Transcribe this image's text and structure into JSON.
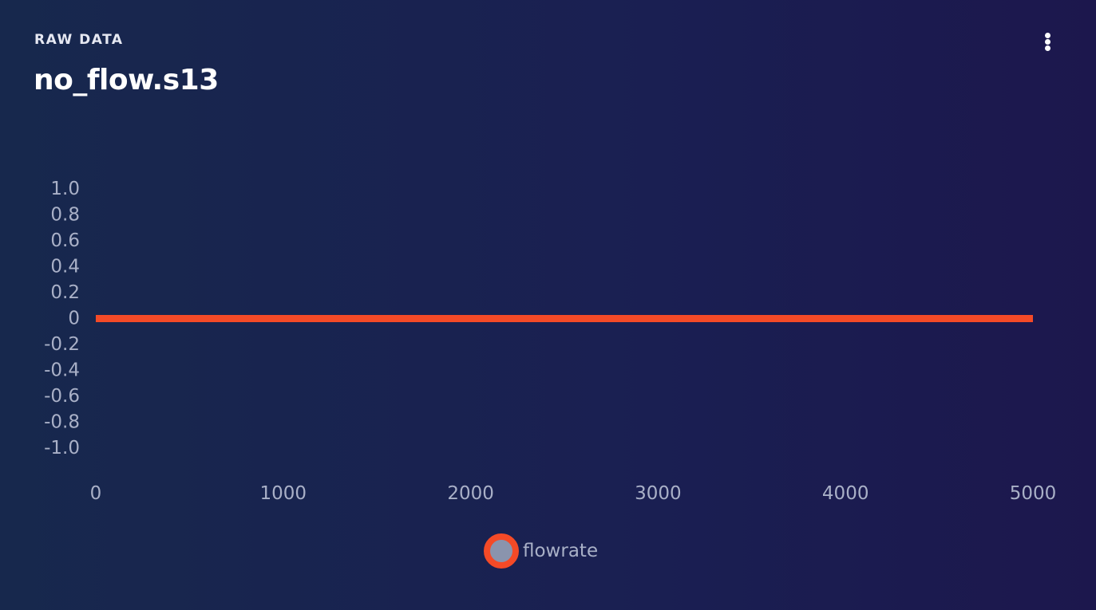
{
  "header": {
    "kicker": "RAW DATA",
    "title": "no_flow.s13"
  },
  "menu": {
    "icon": "more-vertical-icon"
  },
  "chart_data": {
    "type": "line",
    "title": "",
    "xlabel": "",
    "ylabel": "",
    "xlim": [
      0,
      5000
    ],
    "ylim": [
      -1.0,
      1.0
    ],
    "x_ticks": [
      "0",
      "1000",
      "2000",
      "3000",
      "4000",
      "5000"
    ],
    "y_ticks": [
      "1.0",
      "0.8",
      "0.6",
      "0.4",
      "0.2",
      "0",
      "-0.2",
      "-0.4",
      "-0.6",
      "-0.8",
      "-1.0"
    ],
    "grid": false,
    "legend_position": "bottom-center",
    "series": [
      {
        "name": "flowrate",
        "color": "#f44a27",
        "x": [
          0,
          5000
        ],
        "y": [
          0,
          0
        ]
      }
    ]
  }
}
